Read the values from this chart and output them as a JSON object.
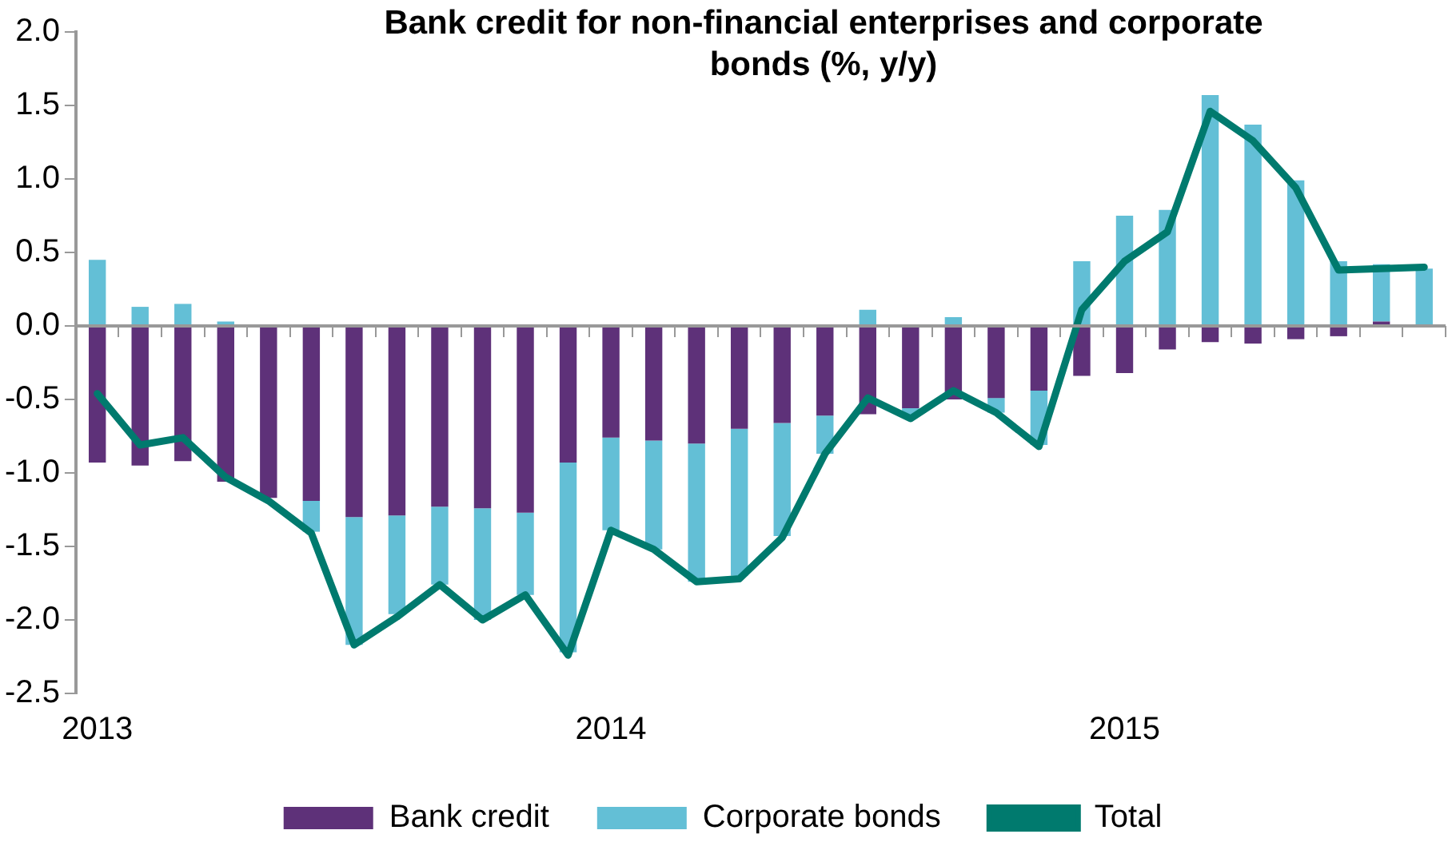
{
  "chart_data": {
    "type": "bar",
    "title": "Bank credit for non-financial enterprises and corporate bonds (%, y/y)",
    "categories": [
      "2013",
      null,
      null,
      null,
      null,
      null,
      null,
      null,
      null,
      null,
      null,
      null,
      "2014",
      null,
      null,
      null,
      null,
      null,
      null,
      null,
      null,
      null,
      null,
      null,
      "2015",
      null,
      null,
      null,
      null,
      null,
      null,
      null
    ],
    "stacked": true,
    "series": [
      {
        "name": "Bank credit",
        "color": "#5e3179",
        "values": [
          -0.93,
          -0.95,
          -0.92,
          -1.06,
          -1.17,
          -1.19,
          -1.3,
          -1.29,
          -1.23,
          -1.24,
          -1.27,
          -0.93,
          -0.76,
          -0.78,
          -0.8,
          -0.7,
          -0.66,
          -0.61,
          -0.6,
          -0.56,
          -0.5,
          -0.49,
          -0.44,
          -0.34,
          -0.32,
          -0.16,
          -0.11,
          -0.12,
          -0.09,
          -0.07,
          0.03,
          null
        ]
      },
      {
        "name": "Corporate bonds",
        "color": "#63bfd6",
        "values": [
          0.45,
          0.13,
          0.15,
          0.03,
          0,
          -0.21,
          -0.87,
          -0.67,
          -0.53,
          -0.76,
          -0.56,
          -1.29,
          -0.63,
          -0.74,
          -0.94,
          -1.0,
          -0.77,
          -0.26,
          0.11,
          -0.05,
          0.06,
          -0.1,
          -0.37,
          0.44,
          0.75,
          0.79,
          1.57,
          1.37,
          0.99,
          0.44,
          0.39,
          0.39
        ]
      },
      {
        "name": "Total",
        "type": "line",
        "color": "#007a6e",
        "values": [
          -0.46,
          -0.81,
          -0.76,
          -1.03,
          -1.19,
          -1.41,
          -2.17,
          -1.98,
          -1.76,
          -2.0,
          -1.83,
          -2.24,
          -1.39,
          -1.52,
          -1.74,
          -1.72,
          -1.44,
          -0.87,
          -0.49,
          -0.63,
          -0.44,
          -0.59,
          -0.82,
          0.11,
          0.44,
          0.64,
          1.46,
          1.26,
          0.94,
          0.38,
          0.39,
          0.4
        ]
      }
    ],
    "ylim": [
      -2.5,
      2.0
    ],
    "yticks": [
      {
        "value": -2.5,
        "label": "-2.5"
      },
      {
        "value": -2.0,
        "label": "-2.0"
      },
      -1.5,
      {
        "value": -1.0,
        "label": "-1.0"
      },
      -0.5,
      {
        "value": 0,
        "label": "0.0"
      },
      0.5,
      {
        "value": 1.0,
        "label": "1.0"
      },
      1.5,
      {
        "value": 2.0,
        "label": "2.0"
      }
    ],
    "ref_lines": [
      {
        "axis": "y",
        "value": 0,
        "color": "#999999",
        "line_style": "solid"
      }
    ],
    "grid": false,
    "legend": "bottom",
    "marker": "none",
    "line_style": "solid"
  }
}
